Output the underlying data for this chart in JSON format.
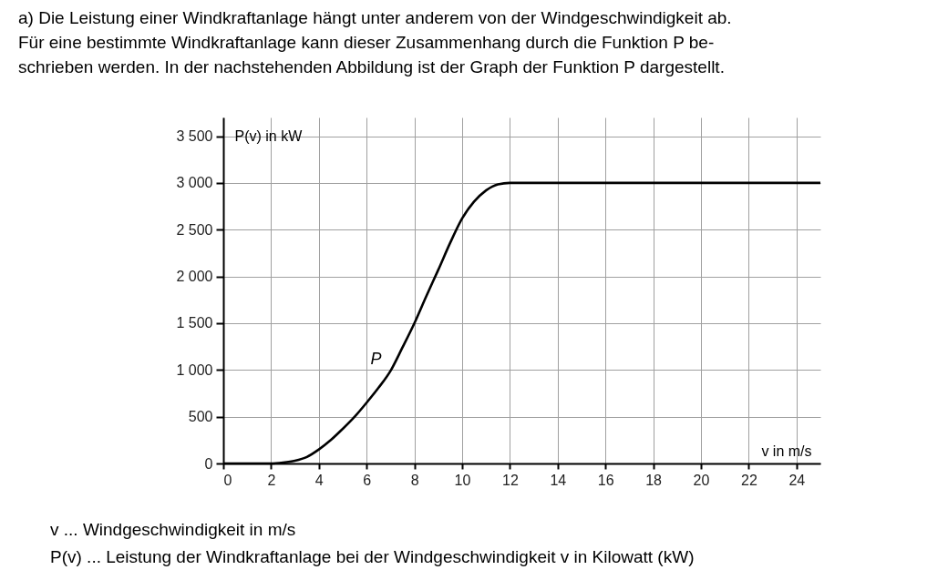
{
  "chart_data": {
    "type": "line",
    "title": "a)  Die Leistung einer Windkraftanlage hängt unter anderem von der Windgeschwindigkeit ab.\n     Für eine bestimmte Windkraftanlage kann dieser Zusammenhang durch die Funktion P be-\n     schrieben werden. In der nachstehenden Abbildung ist der Graph der Funktion P dargestellt.",
    "xlabel": "v in m/s",
    "ylabel": "P(v) in kW",
    "series": [
      {
        "name": "P",
        "color": "#000000",
        "x": [
          0,
          1,
          2,
          2.5,
          3,
          3.5,
          4,
          4.5,
          5,
          5.5,
          6,
          6.5,
          7,
          7.5,
          8,
          8.5,
          9,
          9.5,
          10,
          10.5,
          11,
          11.5,
          12,
          25
        ],
        "values": [
          0,
          0,
          0,
          10,
          30,
          70,
          150,
          250,
          370,
          500,
          650,
          810,
          990,
          1240,
          1500,
          1790,
          2070,
          2360,
          2620,
          2800,
          2920,
          2985,
          3000,
          3000
        ]
      }
    ],
    "xlim": [
      0,
      25
    ],
    "ylim": [
      0,
      3700
    ],
    "xticks": [
      0,
      2,
      4,
      6,
      8,
      10,
      12,
      14,
      16,
      18,
      20,
      22,
      24
    ],
    "yticks": [
      0,
      500,
      {
        "value": 1000,
        "label": "1 000"
      },
      {
        "value": 1500,
        "label": "1 500"
      },
      {
        "value": 2000,
        "label": "2 000"
      },
      {
        "value": 2500,
        "label": "2 500"
      },
      {
        "value": 3000,
        "label": "3 000"
      },
      {
        "value": 3500,
        "label": "3 500"
      }
    ],
    "grid": true,
    "marker": "none",
    "line_style": "solid",
    "annotations": [
      "v ... Windgeschwindigkeit in m/s",
      "P(v) ... Leistung der Windkraftanlage bei der Windgeschwindigkeit v in Kilowatt (kW)"
    ]
  }
}
